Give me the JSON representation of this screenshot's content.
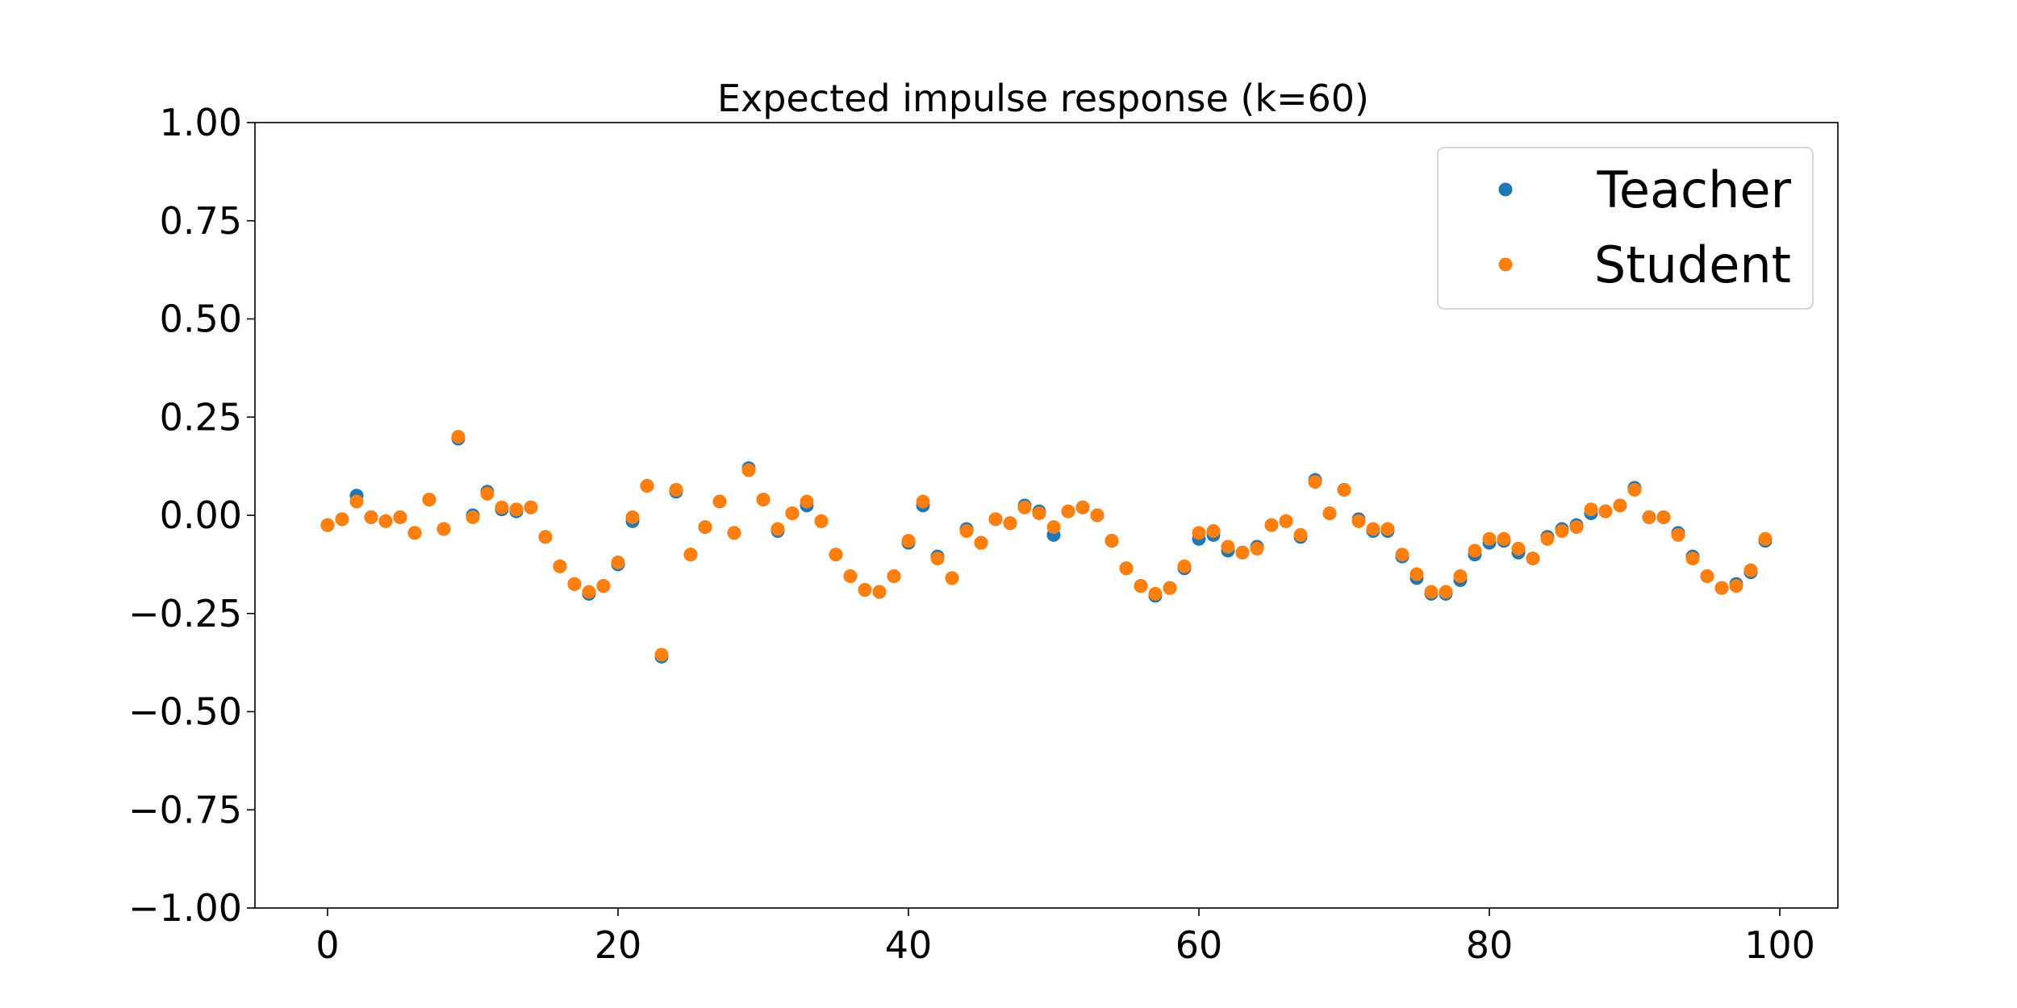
{
  "chart_data": {
    "type": "scatter",
    "title": "Expected impulse response (k=60)",
    "xlabel": "",
    "ylabel": "",
    "xlim": [
      -5,
      104
    ],
    "ylim": [
      -1.0,
      1.0
    ],
    "x_ticks": [
      0,
      20,
      40,
      60,
      80,
      100
    ],
    "x_tick_labels": [
      "0",
      "20",
      "40",
      "60",
      "80",
      "100"
    ],
    "y_ticks": [
      1.0,
      0.75,
      0.5,
      0.25,
      0.0,
      -0.25,
      -0.5,
      -0.75,
      -1.0
    ],
    "y_tick_labels": [
      "1.00",
      "0.75",
      "0.50",
      "0.25",
      "0.00",
      "−0.25",
      "−0.50",
      "−0.75",
      "−1.00"
    ],
    "grid": false,
    "legend_position": "top-right",
    "x": [
      0,
      1,
      2,
      3,
      4,
      5,
      6,
      7,
      8,
      9,
      10,
      11,
      12,
      13,
      14,
      15,
      16,
      17,
      18,
      19,
      20,
      21,
      22,
      23,
      24,
      25,
      26,
      27,
      28,
      29,
      30,
      31,
      32,
      33,
      34,
      35,
      36,
      37,
      38,
      39,
      40,
      41,
      42,
      43,
      44,
      45,
      46,
      47,
      48,
      49,
      50,
      51,
      52,
      53,
      54,
      55,
      56,
      57,
      58,
      59,
      60,
      61,
      62,
      63,
      64,
      65,
      66,
      67,
      68,
      69,
      70,
      71,
      72,
      73,
      74,
      75,
      76,
      77,
      78,
      79,
      80,
      81,
      82,
      83,
      84,
      85,
      86,
      87,
      88,
      89,
      90,
      91,
      92,
      93,
      94,
      95,
      96,
      97,
      98,
      99
    ],
    "series": [
      {
        "name": "Teacher",
        "color": "#1f77b4",
        "values": [
          -0.025,
          -0.01,
          0.05,
          -0.005,
          -0.015,
          -0.005,
          -0.045,
          0.04,
          -0.035,
          0.195,
          0.0,
          0.06,
          0.015,
          0.01,
          0.02,
          -0.055,
          -0.13,
          -0.175,
          -0.2,
          -0.18,
          -0.125,
          -0.015,
          0.075,
          -0.36,
          0.06,
          -0.1,
          -0.03,
          0.035,
          -0.045,
          0.12,
          0.04,
          -0.04,
          0.005,
          0.025,
          -0.015,
          -0.1,
          -0.155,
          -0.19,
          -0.195,
          -0.155,
          -0.07,
          0.025,
          -0.105,
          -0.16,
          -0.035,
          -0.07,
          -0.01,
          -0.02,
          0.025,
          0.01,
          -0.05,
          0.01,
          0.02,
          0.0,
          -0.065,
          -0.135,
          -0.18,
          -0.205,
          -0.185,
          -0.135,
          -0.06,
          -0.05,
          -0.09,
          -0.095,
          -0.08,
          -0.025,
          -0.015,
          -0.055,
          0.09,
          0.005,
          0.065,
          -0.01,
          -0.04,
          -0.04,
          -0.105,
          -0.16,
          -0.2,
          -0.2,
          -0.165,
          -0.1,
          -0.07,
          -0.065,
          -0.095,
          -0.11,
          -0.055,
          -0.035,
          -0.025,
          0.005,
          0.01,
          0.025,
          0.07,
          -0.005,
          -0.005,
          -0.045,
          -0.105,
          -0.155,
          -0.185,
          -0.175,
          -0.145,
          -0.065
        ]
      },
      {
        "name": "Student",
        "color": "#ff7f0e",
        "values": [
          -0.025,
          -0.01,
          0.035,
          -0.005,
          -0.015,
          -0.005,
          -0.045,
          0.04,
          -0.035,
          0.2,
          -0.005,
          0.055,
          0.02,
          0.015,
          0.02,
          -0.055,
          -0.13,
          -0.175,
          -0.195,
          -0.18,
          -0.12,
          -0.005,
          0.075,
          -0.355,
          0.065,
          -0.1,
          -0.03,
          0.035,
          -0.045,
          0.115,
          0.04,
          -0.035,
          0.005,
          0.035,
          -0.015,
          -0.1,
          -0.155,
          -0.19,
          -0.195,
          -0.155,
          -0.065,
          0.035,
          -0.11,
          -0.16,
          -0.04,
          -0.07,
          -0.01,
          -0.02,
          0.02,
          0.005,
          -0.03,
          0.01,
          0.02,
          0.0,
          -0.065,
          -0.135,
          -0.18,
          -0.2,
          -0.185,
          -0.13,
          -0.045,
          -0.04,
          -0.08,
          -0.095,
          -0.085,
          -0.025,
          -0.015,
          -0.05,
          0.085,
          0.005,
          0.065,
          -0.015,
          -0.035,
          -0.035,
          -0.1,
          -0.15,
          -0.195,
          -0.195,
          -0.155,
          -0.09,
          -0.06,
          -0.06,
          -0.085,
          -0.11,
          -0.06,
          -0.04,
          -0.03,
          0.015,
          0.01,
          0.025,
          0.065,
          -0.005,
          -0.005,
          -0.05,
          -0.11,
          -0.155,
          -0.185,
          -0.18,
          -0.14,
          -0.06
        ]
      }
    ]
  }
}
